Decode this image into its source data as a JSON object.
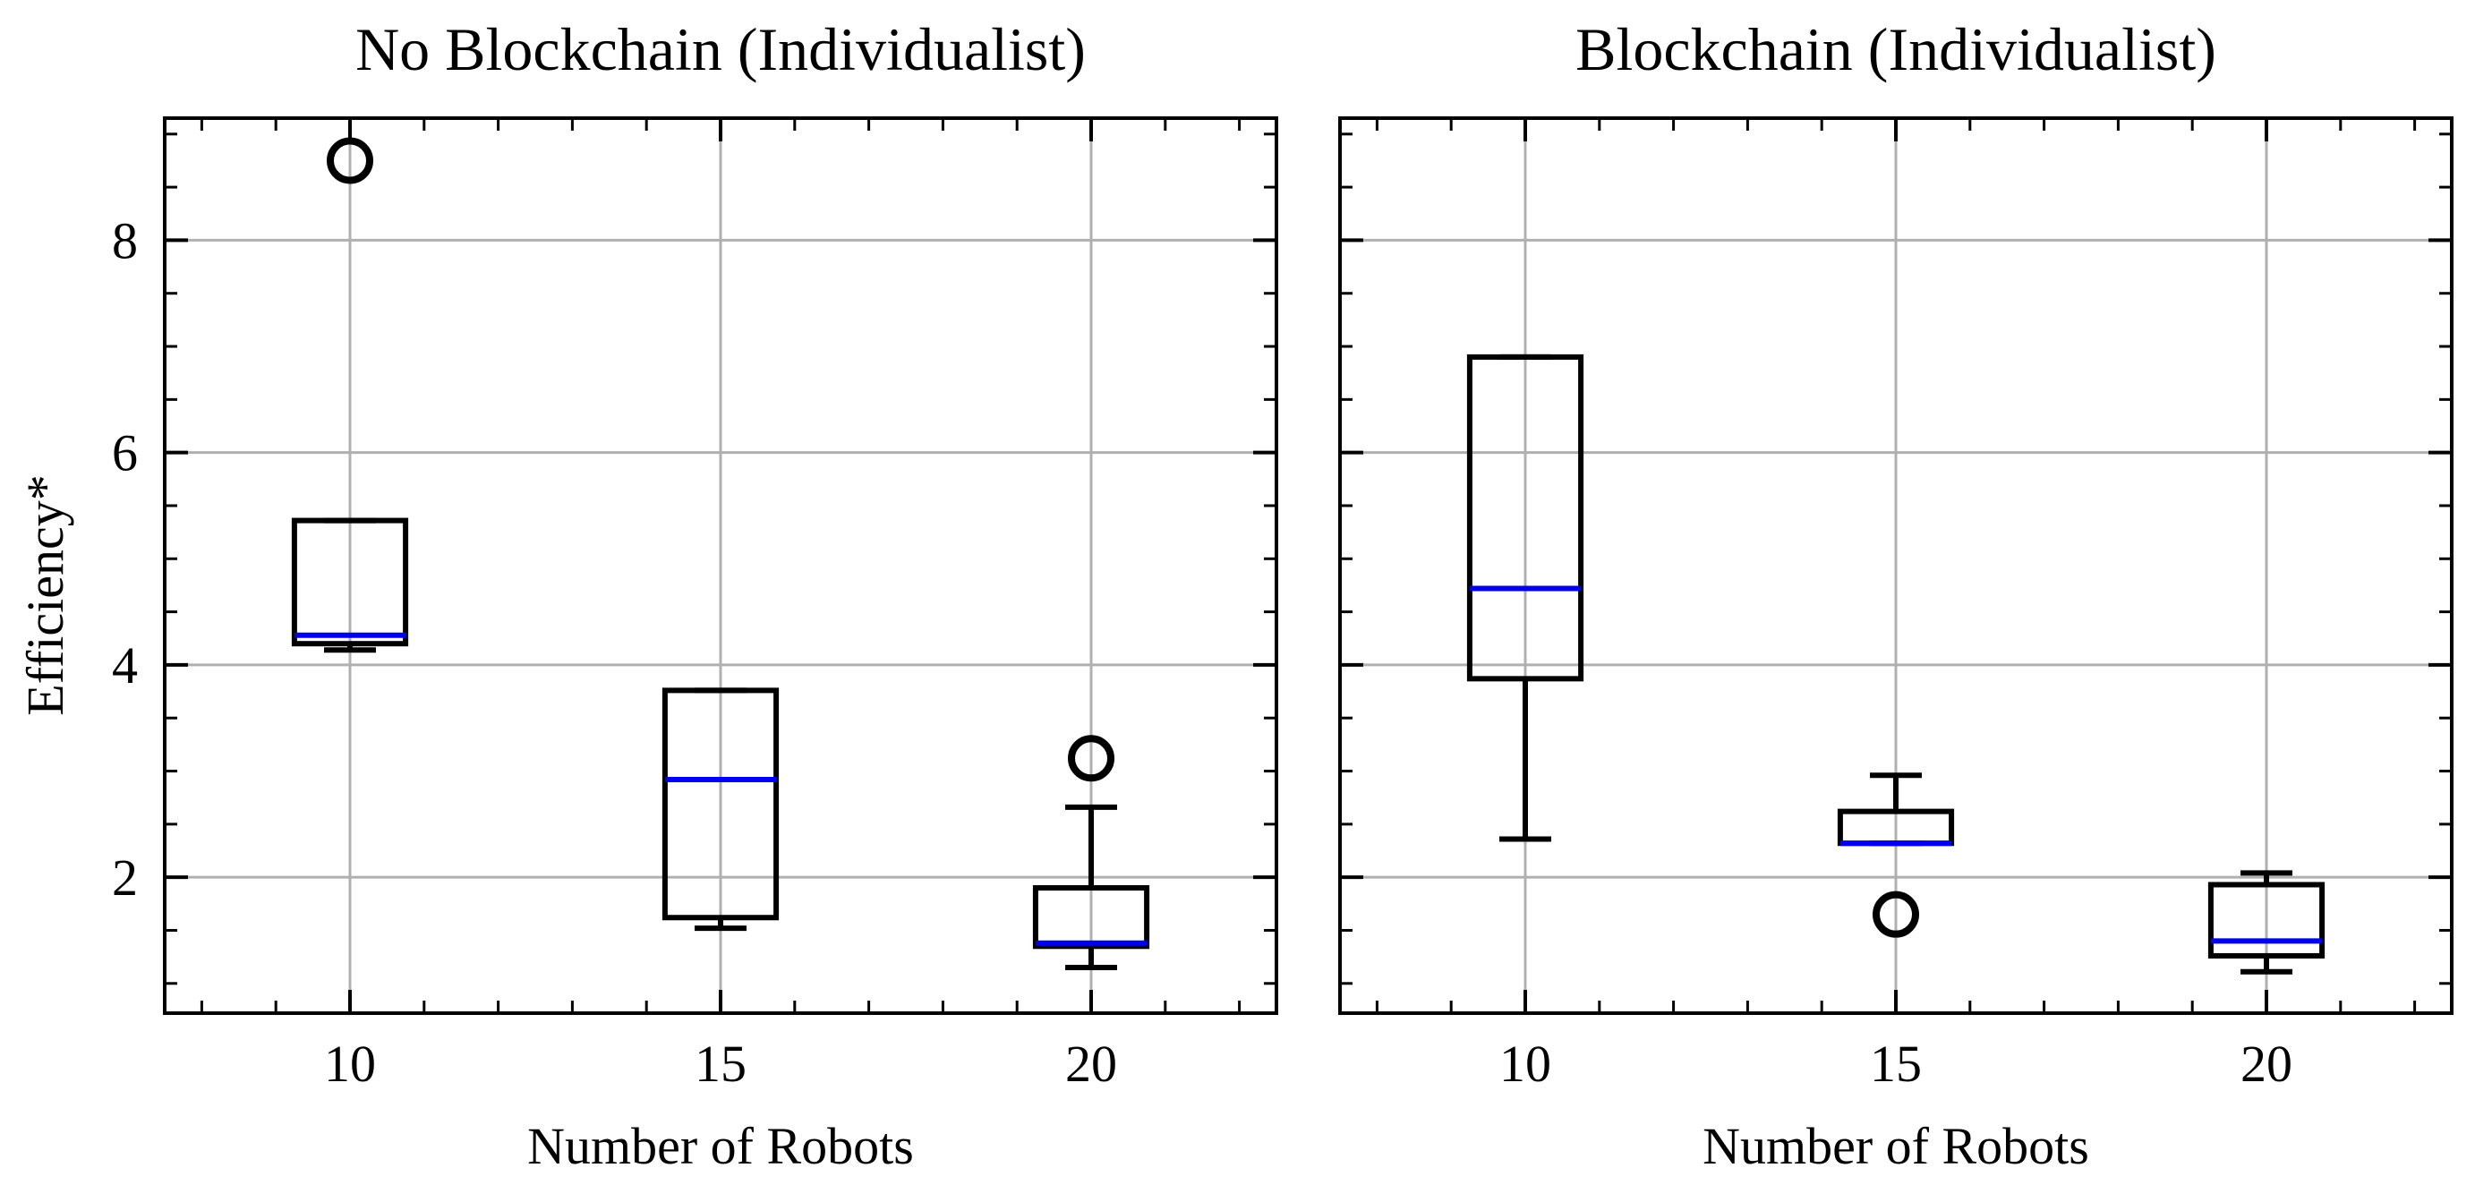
{
  "chart_data": [
    {
      "type": "box",
      "title": "No Blockchain (Individualist)",
      "xlabel": "Number of Robots",
      "ylabel": "Efficiency*",
      "categories": [
        "10",
        "15",
        "20"
      ],
      "x": [
        10,
        15,
        20
      ],
      "xlim": [
        7.5,
        22.5
      ],
      "ylim": [
        0.72,
        9.15
      ],
      "yticks": [
        2,
        4,
        6,
        8
      ],
      "grid": true,
      "boxes": [
        {
          "x": 10,
          "whislo": 4.14,
          "q1": 4.2,
          "med": 4.28,
          "q3": 5.36,
          "whishi": 5.36,
          "fliers": [
            8.75
          ]
        },
        {
          "x": 15,
          "whislo": 1.52,
          "q1": 1.62,
          "med": 2.92,
          "q3": 3.76,
          "whishi": 3.76,
          "fliers": []
        },
        {
          "x": 20,
          "whislo": 1.15,
          "q1": 1.35,
          "med": 1.38,
          "q3": 1.9,
          "whishi": 2.66,
          "fliers": [
            3.12
          ]
        }
      ]
    },
    {
      "type": "box",
      "title": "Blockchain (Individualist)",
      "xlabel": "Number of Robots",
      "ylabel": "",
      "categories": [
        "10",
        "15",
        "20"
      ],
      "x": [
        10,
        15,
        20
      ],
      "xlim": [
        7.5,
        22.5
      ],
      "ylim": [
        0.72,
        9.15
      ],
      "yticks": [
        2,
        4,
        6,
        8
      ],
      "grid": true,
      "boxes": [
        {
          "x": 10,
          "whislo": 2.36,
          "q1": 3.87,
          "med": 4.72,
          "q3": 6.9,
          "whishi": 6.9,
          "fliers": []
        },
        {
          "x": 15,
          "whislo": 2.32,
          "q1": 2.32,
          "med": 2.32,
          "q3": 2.62,
          "whishi": 2.96,
          "fliers": [
            1.65
          ]
        },
        {
          "x": 20,
          "whislo": 1.11,
          "q1": 1.26,
          "med": 1.4,
          "q3": 1.93,
          "whishi": 2.04,
          "fliers": []
        }
      ]
    }
  ]
}
